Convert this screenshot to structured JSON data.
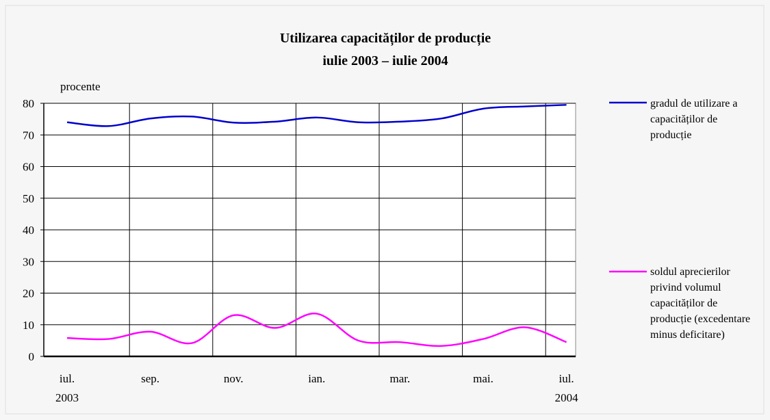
{
  "chart_data": {
    "type": "line",
    "title": "Utilizarea capacităților de producție",
    "subtitle": "iulie 2003 – iulie 2004",
    "y_label": "procente",
    "categories": [
      "iul.",
      null,
      "sep.",
      null,
      "nov.",
      null,
      "ian.",
      null,
      "mar.",
      null,
      "mai.",
      null,
      "iul."
    ],
    "category_sublabels": [
      "2003",
      null,
      null,
      null,
      null,
      null,
      null,
      null,
      null,
      null,
      null,
      null,
      "2004"
    ],
    "series": [
      {
        "name": "gradul de utilizare a capacităților de producție",
        "color": "#0000cc",
        "values": [
          74,
          72.8,
          75.2,
          75.8,
          73.9,
          74.2,
          75.5,
          74,
          74.2,
          75.2,
          78.3,
          79,
          79.5
        ]
      },
      {
        "name": "soldul aprecierilor privind volumul capacităților de producție (excedentare minus deficitare)",
        "color": "#ff00ff",
        "values": [
          5.8,
          5.5,
          7.8,
          4.2,
          13,
          9,
          13.5,
          5,
          4.5,
          3.3,
          5.5,
          9.2,
          4.5
        ]
      }
    ],
    "ylim": [
      0,
      80
    ],
    "yticks": [
      0,
      10,
      20,
      30,
      40,
      50,
      60,
      70,
      80
    ],
    "grid": true,
    "legend": "right"
  }
}
